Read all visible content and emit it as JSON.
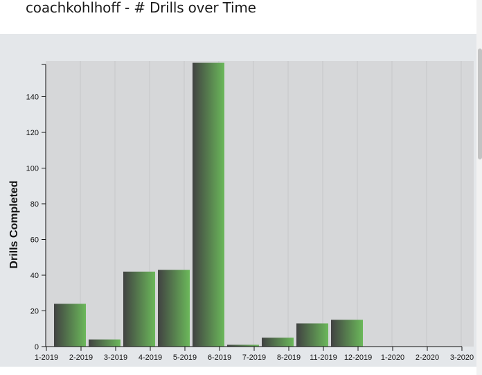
{
  "header": {
    "title": "coachkohlhoff - # Drills over Time"
  },
  "chart_data": {
    "type": "bar",
    "title": "coachkohlhoff - # Drills over Time",
    "xlabel": "",
    "ylabel": "Drills Completed",
    "categories": [
      "1-2019",
      "2-2019",
      "3-2019",
      "4-2019",
      "5-2019",
      "6-2019",
      "7-2019",
      "8-2019",
      "11-2019",
      "12-2019",
      "1-2020",
      "2-2020",
      "3-2020"
    ],
    "values": [
      24,
      4,
      42,
      43,
      159,
      1,
      5,
      13,
      15,
      0,
      0,
      0,
      0
    ],
    "ylim": [
      0,
      160
    ],
    "yticks": [
      0,
      20,
      40,
      60,
      80,
      100,
      120,
      140
    ],
    "grid": true,
    "legend": "none",
    "colors": {
      "bar_start": "#414242",
      "bar_end": "#6bb85a",
      "plot_background": "#d6d7d9",
      "gridline": "#c6c7c9",
      "axis": "#111111"
    }
  }
}
